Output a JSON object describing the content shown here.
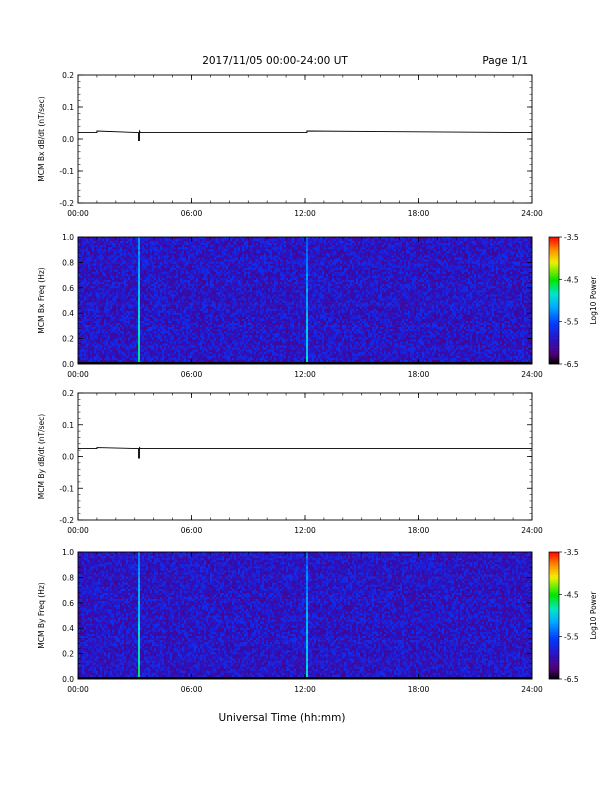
{
  "header": {
    "title": "2017/11/05  00:00-24:00 UT",
    "page": "Page 1/1"
  },
  "footer": {
    "xlabel": "Universal Time (hh:mm)"
  },
  "chart_data": [
    {
      "type": "line",
      "ylabel": "MCM Bx dB/dt (nT/sec)",
      "xlim": [
        0,
        24
      ],
      "ylim": [
        -0.2,
        0.2
      ],
      "x_ticks": [
        "00:00",
        "06:00",
        "12:00",
        "18:00",
        "24:00"
      ],
      "y_ticks": [
        "-0.2",
        "-0.1",
        "0.0",
        "0.1",
        "0.2"
      ],
      "series": [
        {
          "x": [
            0,
            1.0,
            1.0,
            3.2,
            3.2,
            3.25,
            3.25,
            3.3,
            3.3,
            12.1,
            12.1,
            24
          ],
          "y": [
            0.02,
            0.02,
            0.025,
            0.02,
            -0.005,
            -0.005,
            0.025,
            0.02,
            0.02,
            0.02,
            0.025,
            0.02
          ],
          "color": "#000000"
        }
      ]
    },
    {
      "type": "heatmap",
      "ylabel": "MCM Bx Freq (Hz)",
      "xlim": [
        0,
        24
      ],
      "ylim": [
        0.0,
        1.0
      ],
      "x_ticks": [
        "00:00",
        "06:00",
        "12:00",
        "18:00",
        "24:00"
      ],
      "y_ticks": [
        "0.0",
        "0.2",
        "0.4",
        "0.6",
        "0.8",
        "1.0"
      ],
      "colorbar": {
        "label": "Log10 Power",
        "ticks": [
          "-3.5",
          "-4.5",
          "-5.5",
          "-6.5"
        ],
        "range": [
          -6.5,
          -3.5
        ]
      },
      "background_level": -5.9,
      "events": [
        {
          "time_h": 3.2,
          "level_low": -4.7,
          "level_high": -5.3
        },
        {
          "time_h": 12.1,
          "level_low": -4.9,
          "level_high": -5.4
        }
      ]
    },
    {
      "type": "line",
      "ylabel": "MCM By dB/dt (nT/sec)",
      "xlim": [
        0,
        24
      ],
      "ylim": [
        -0.2,
        0.2
      ],
      "x_ticks": [
        "00:00",
        "06:00",
        "12:00",
        "18:00",
        "24:00"
      ],
      "y_ticks": [
        "-0.2",
        "-0.1",
        "0.0",
        "0.1",
        "0.2"
      ],
      "series": [
        {
          "x": [
            0,
            1.0,
            1.0,
            3.2,
            3.2,
            3.25,
            3.25,
            3.3,
            3.3,
            24
          ],
          "y": [
            0.025,
            0.025,
            0.028,
            0.025,
            -0.005,
            -0.005,
            0.028,
            0.025,
            0.025,
            0.025
          ],
          "color": "#000000"
        }
      ]
    },
    {
      "type": "heatmap",
      "ylabel": "MCM By Freq (Hz)",
      "xlim": [
        0,
        24
      ],
      "ylim": [
        0.0,
        1.0
      ],
      "x_ticks": [
        "00:00",
        "06:00",
        "12:00",
        "18:00",
        "24:00"
      ],
      "y_ticks": [
        "0.0",
        "0.2",
        "0.4",
        "0.6",
        "0.8",
        "1.0"
      ],
      "colorbar": {
        "label": "Log10 Power",
        "ticks": [
          "-3.5",
          "-4.5",
          "-5.5",
          "-6.5"
        ],
        "range": [
          -6.5,
          -3.5
        ]
      },
      "background_level": -5.9,
      "events": [
        {
          "time_h": 3.2,
          "level_low": -4.7,
          "level_high": -5.3
        },
        {
          "time_h": 12.1,
          "level_low": -4.9,
          "level_high": -5.4
        }
      ]
    }
  ]
}
